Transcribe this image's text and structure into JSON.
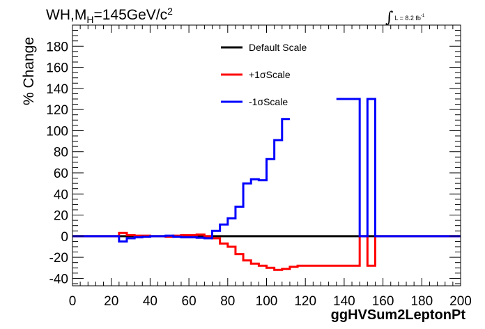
{
  "header": {
    "title_main": "WH,M",
    "title_sub": "H",
    "title_rest": "=145GeV/c",
    "title_sup": "2",
    "lumi_symbol": "∫",
    "lumi_text": "L = 8.2 fb",
    "lumi_exp": "-1"
  },
  "chart_data": {
    "type": "line",
    "ylabel": "% Change",
    "xlabel": "ggHVSum2LeptonPt",
    "xlim": [
      0,
      200
    ],
    "ylim": [
      -47,
      200
    ],
    "xticks": [
      0,
      20,
      40,
      60,
      80,
      100,
      120,
      140,
      160,
      180,
      200
    ],
    "yticks": [
      -40,
      -20,
      0,
      20,
      40,
      60,
      80,
      100,
      120,
      140,
      160,
      180
    ],
    "legend_position": "top-center",
    "bin_edges": [
      0,
      4,
      8,
      12,
      16,
      20,
      24,
      28,
      32,
      36,
      40,
      44,
      48,
      52,
      56,
      60,
      64,
      68,
      72,
      76,
      80,
      84,
      88,
      92,
      96,
      100,
      104,
      108,
      112,
      116,
      120,
      124,
      128,
      132,
      136,
      140,
      144,
      148,
      152,
      156,
      160,
      164,
      168,
      172,
      176,
      180,
      184,
      188,
      192,
      196,
      200
    ],
    "series": [
      {
        "name": "Default Scale",
        "color": "#000000",
        "values": [
          0,
          0,
          0,
          0,
          0,
          0,
          0,
          0,
          0,
          0,
          0,
          0,
          0,
          0,
          0,
          0,
          0,
          0,
          0,
          0,
          0,
          0,
          0,
          0,
          0,
          0,
          0,
          0,
          0,
          0,
          0,
          0,
          0,
          0,
          0,
          0,
          0,
          0,
          0,
          0,
          0,
          0,
          0,
          0,
          0,
          0,
          0,
          0,
          0,
          0
        ]
      },
      {
        "name": "+1σScale",
        "color": "#ff0000",
        "values": [
          0,
          0,
          0,
          0,
          0,
          0,
          3,
          1,
          0.5,
          0.5,
          0,
          0,
          -0.5,
          0.5,
          1,
          1,
          1.5,
          0,
          -2,
          -7,
          -10,
          -17,
          -23,
          -26,
          -28,
          -30,
          -32,
          -31,
          -29,
          -28,
          -28,
          -28,
          -28,
          -28,
          -28,
          -28,
          -28,
          0,
          -28,
          0,
          0,
          0,
          0,
          0,
          0,
          0,
          0,
          0,
          0,
          0
        ]
      },
      {
        "name": "-1σScale",
        "color": "#0000ff",
        "values": [
          0,
          0,
          0,
          0,
          0,
          0,
          -5,
          -2,
          -1,
          -0.5,
          0,
          0,
          0.5,
          -0.5,
          -1,
          -1,
          -1.5,
          -2,
          5,
          11,
          17,
          28,
          50,
          54,
          53,
          73,
          91,
          111,
          null,
          null,
          null,
          null,
          null,
          null,
          130,
          130,
          130,
          0,
          130,
          0,
          0,
          0,
          0,
          0,
          0,
          0,
          0,
          0,
          0,
          0
        ]
      }
    ]
  }
}
